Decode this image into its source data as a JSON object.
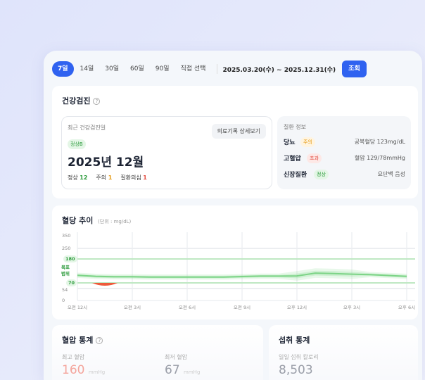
{
  "toolbar": {
    "periods": [
      "7일",
      "14일",
      "30일",
      "60일",
      "90일",
      "직접 선택"
    ],
    "active": "7일",
    "date_range": "2025.03.20(수) ~ 2025.12.31(수)",
    "search_label": "조회"
  },
  "checkup": {
    "title": "건강검진",
    "help": "?",
    "recent_label": "최근 건강검진일",
    "grade": "정상B",
    "date": "2025년 12월",
    "detail_button": "의료기록 상세보기",
    "counts": [
      {
        "label": "정상",
        "value": "12",
        "color": "#2a9a3a"
      },
      {
        "label": "주의",
        "value": "1",
        "color": "#e59a14"
      },
      {
        "label": "질환의심",
        "value": "1",
        "color": "#e2483c"
      }
    ],
    "disease_title": "질환 정보",
    "diseases": [
      {
        "name": "당뇨",
        "status": "주의",
        "status_bg": "#fff4e0",
        "status_color": "#e59a14",
        "detail": "공복혈당 123mg/dL"
      },
      {
        "name": "고혈압",
        "status": "초과",
        "status_bg": "#fde8e6",
        "status_color": "#e2483c",
        "detail": "혈압 129/78mmHg"
      },
      {
        "name": "신장질환",
        "status": "정상",
        "status_bg": "#e4f6e6",
        "status_color": "#2a9a3a",
        "detail": "요단백 음성"
      }
    ]
  },
  "glucose": {
    "title": "혈당 추이",
    "unit": "(단위 : mg/dL)",
    "target_label_1": "목표",
    "target_label_2": "범위",
    "chart_data": {
      "type": "area",
      "y_ticks": [
        0,
        54,
        70,
        180,
        250,
        350
      ],
      "target_range": [
        70,
        180
      ],
      "x_ticks": [
        "오전 12시",
        "오전 3시",
        "오전 6시",
        "오전 9시",
        "오후 12시",
        "오후 3시",
        "오후 6시"
      ],
      "x_hours": [
        0,
        1,
        2,
        3,
        4,
        5,
        6,
        7,
        8,
        9,
        10,
        11,
        12,
        13,
        14,
        15,
        16,
        17,
        18
      ],
      "median": [
        105,
        100,
        98,
        98,
        97,
        97,
        97,
        97,
        97,
        99,
        101,
        101,
        102,
        115,
        113,
        110,
        108,
        104,
        100
      ],
      "low_below_range": {
        "from_hour": 0.8,
        "to_hour": 2.2,
        "min": 62
      }
    }
  },
  "bp": {
    "title": "혈압 통계",
    "help": "?",
    "max_label": "최고 혈압",
    "max_value": "160",
    "min_label": "최저 혈압",
    "min_value": "67",
    "unit": "mmHg"
  },
  "intake": {
    "title": "섭취 통계",
    "cal_label": "일일 섭취 칼로리",
    "cal_value": "8,503"
  }
}
